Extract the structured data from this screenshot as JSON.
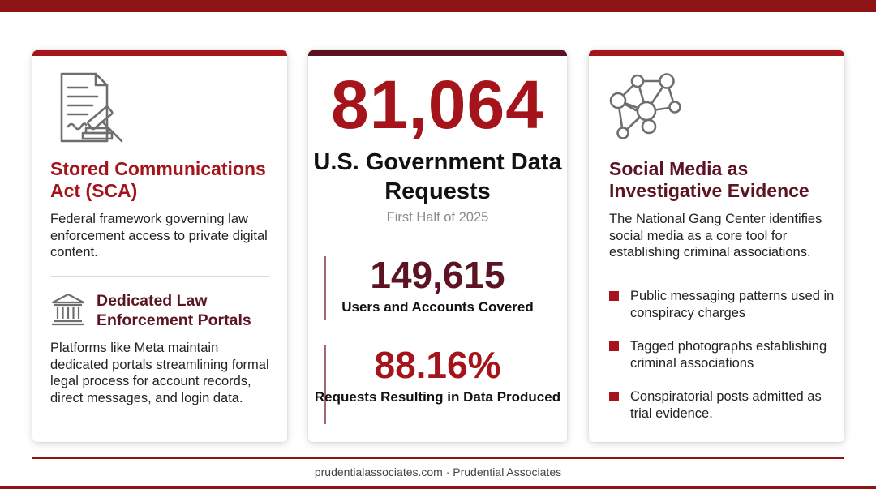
{
  "left_card": {
    "icon": "legal-document-gavel-icon",
    "title": "Stored Communications Act (SCA)",
    "description": "Federal framework governing law enforcement access to private digital content.",
    "portals_icon": "courthouse-building-icon",
    "portals_title": "Dedicated Law Enforcement Portals",
    "portals_description": "Platforms like Meta maintain dedicated portals streamlining formal legal process for account records, direct messages, and login data."
  },
  "middle_card": {
    "headline_number": "81,064",
    "headline_label": "U.S. Government Data Requests",
    "period": "First Half of 2025",
    "stats": [
      {
        "value": "149,615",
        "label": "Users and Accounts Covered"
      },
      {
        "value": "88.16%",
        "label": "Requests Resulting in Data Produced"
      }
    ]
  },
  "right_card": {
    "icon": "network-graph-icon",
    "title": "Social Media as Investigative Evidence",
    "description": "The National Gang Center identifies social media as a core tool for establishing criminal associations.",
    "bullets": [
      "Public messaging patterns used in conspiracy charges",
      "Tagged photographs establishing criminal associations",
      "Conspiratorial posts admitted as trial evidence."
    ]
  },
  "footer": {
    "text": "prudentialassociates.com · Prudential Associates"
  },
  "colors": {
    "brand_red": "#a5141b",
    "dark_maroon": "#5c1422",
    "band_red": "#8e1418"
  }
}
